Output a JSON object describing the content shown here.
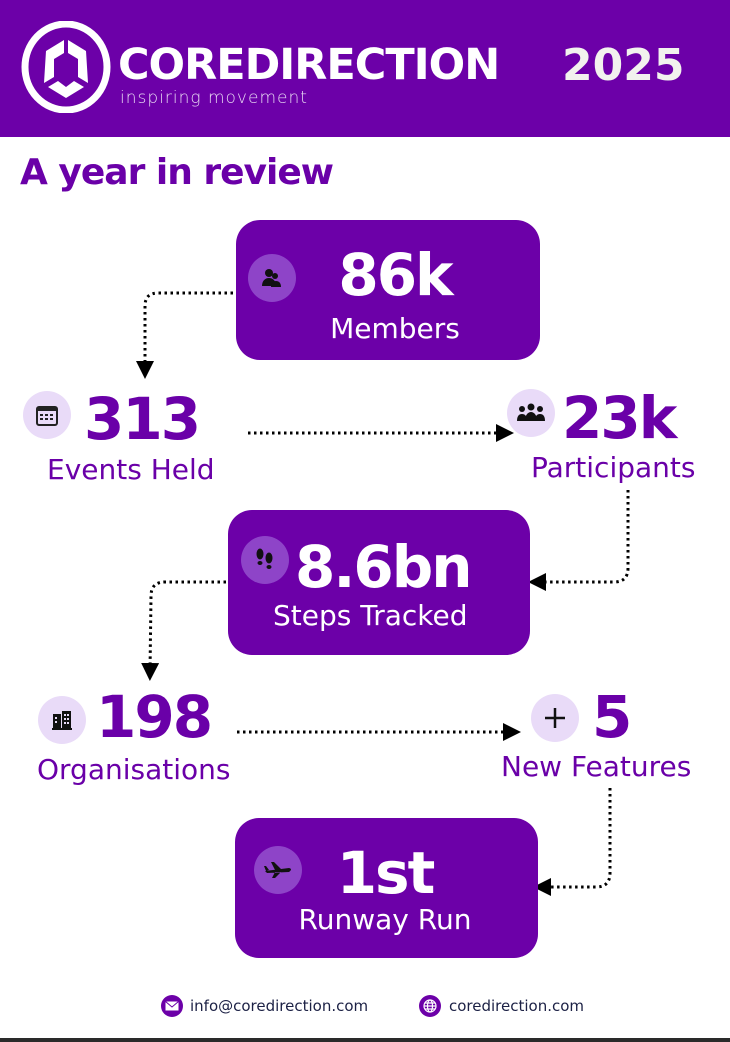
{
  "header": {
    "brand": "COREDIRECTION",
    "tagline": "inspiring movement",
    "year": "2025"
  },
  "title": "A year in review",
  "stats": [
    {
      "value": "86k",
      "label": "Members",
      "icon": "members-icon"
    },
    {
      "value": "313",
      "label": "Events Held",
      "icon": "calendar-icon"
    },
    {
      "value": "23k",
      "label": "Participants",
      "icon": "group-icon"
    },
    {
      "value": "8.6bn",
      "label": "Steps Tracked",
      "icon": "footprints-icon"
    },
    {
      "value": "198",
      "label": "Organisations",
      "icon": "building-icon"
    },
    {
      "value": "5",
      "label": "New Features",
      "icon": "plus-icon"
    },
    {
      "value": "1st",
      "label": "Runway Run",
      "icon": "airplane-icon"
    }
  ],
  "footer": {
    "email": "info@coredirection.com",
    "website": "coredirection.com"
  },
  "colors": {
    "primary": "#6c00a8",
    "icon_light": "#e9dbf8",
    "icon_dark": "#8e44c8",
    "footer_text": "#1c2145"
  }
}
